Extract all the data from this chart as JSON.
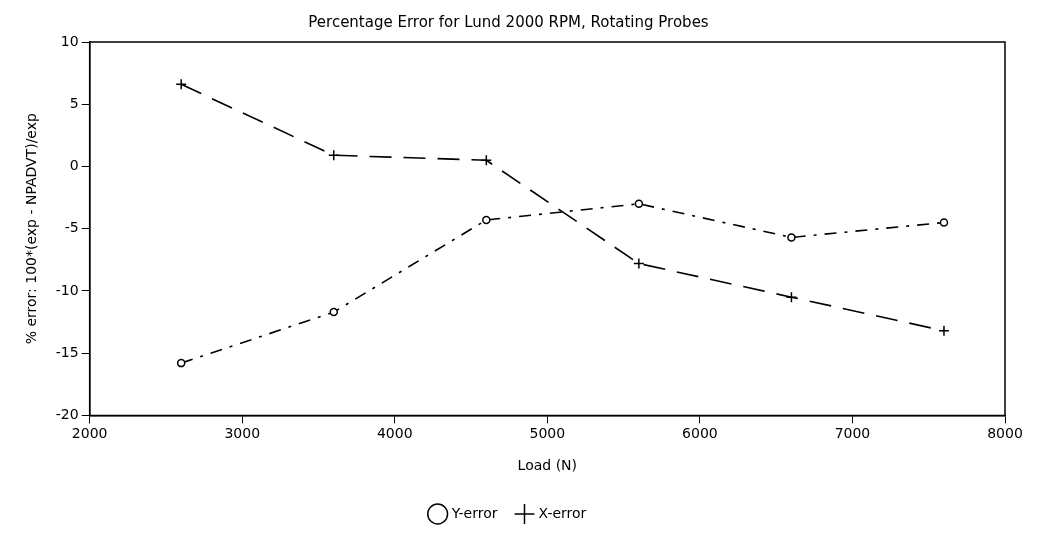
{
  "chart_data": {
    "type": "line",
    "title": "Percentage Error for Lund 2000 RPM, Rotating Probes",
    "xlabel": "Load (N)",
    "ylabel": "% error: 100*(exp - NPADVT)/exp",
    "x": [
      2600,
      3600,
      4600,
      5600,
      6600,
      7600
    ],
    "series": [
      {
        "name": "Y-error",
        "color": "#000000",
        "marker": "circle",
        "line_style": "dotted",
        "values": [
          -15.8,
          -11.7,
          -4.3,
          -3.0,
          -5.7,
          -4.5
        ]
      },
      {
        "name": "X-error",
        "color": "#000000",
        "marker": "cross",
        "line_style": "dashed",
        "values": [
          6.6,
          0.9,
          0.5,
          -7.8,
          -10.5,
          -13.2
        ]
      }
    ],
    "xlim": [
      2000,
      8000
    ],
    "xticks": [
      2000,
      3000,
      4000,
      5000,
      6000,
      7000,
      8000
    ],
    "ylim": [
      -20,
      10
    ],
    "yticks": [
      -20,
      -15,
      -10,
      -5,
      0,
      5,
      10
    ],
    "grid": false,
    "legend": "bottom"
  }
}
